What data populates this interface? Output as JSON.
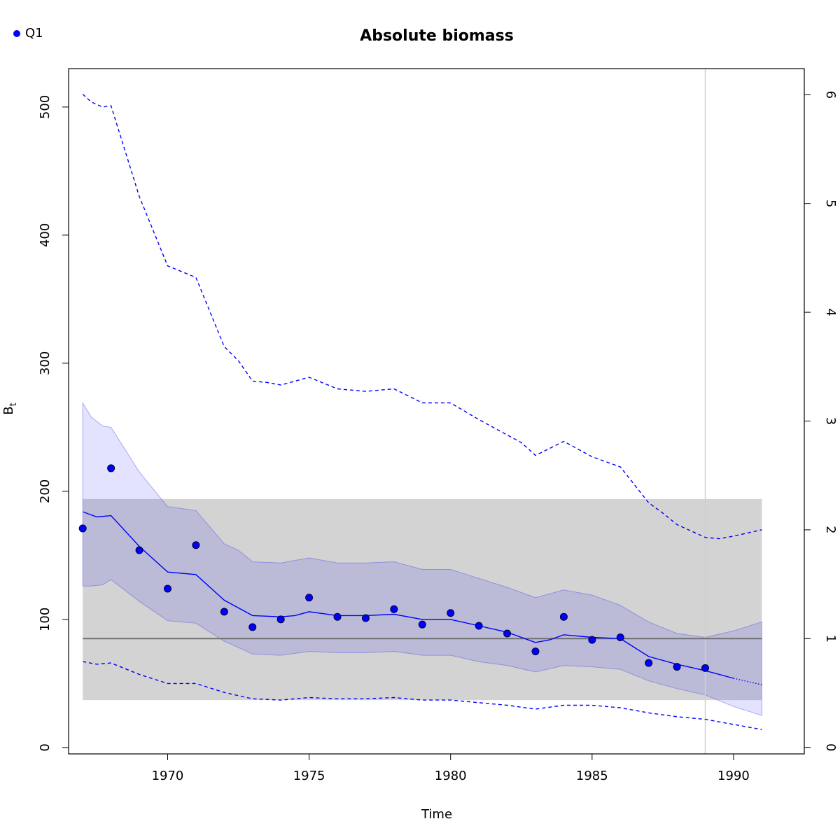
{
  "chart_data": {
    "type": "line",
    "title": "Absolute biomass",
    "xlabel": "Time",
    "ylabel_main": "B",
    "ylabel_sub": "t",
    "xlim": [
      1966.5,
      1992.5
    ],
    "ylim": [
      -5,
      530
    ],
    "y2lim": [
      -0.06,
      6.24
    ],
    "x_ticks": [
      1970,
      1975,
      1980,
      1985,
      1990
    ],
    "x_tick_labels": [
      "1970",
      "1975",
      "1980",
      "1985",
      "1990"
    ],
    "y_ticks": [
      0,
      100,
      200,
      300,
      400,
      500
    ],
    "y_tick_labels": [
      "0",
      "100",
      "200",
      "300",
      "400",
      "500"
    ],
    "y2_ticks": [
      0,
      1,
      2,
      3,
      4,
      5,
      6
    ],
    "y2_tick_labels": [
      "0",
      "1",
      "2",
      "3",
      "4",
      "5",
      "6"
    ],
    "legend": {
      "placement": "top-left",
      "label": "Q1",
      "color": "#0000ff"
    },
    "colors": {
      "series": "#0000ff",
      "ci_band": "#c8c8f5",
      "ref_band": "#d3d3d3",
      "ref_line": "#707070",
      "vline": "#d0d0d0"
    },
    "reference_band": {
      "x": [
        1967,
        1991
      ],
      "y": [
        37,
        194
      ]
    },
    "reference_line": {
      "x": [
        1967,
        1991
      ],
      "y": 85
    },
    "vertical_line": {
      "x": 1989
    },
    "observations": {
      "name": "Q1",
      "x": [
        1967,
        1968,
        1969,
        1970,
        1971,
        1972,
        1973,
        1974,
        1975,
        1976,
        1977,
        1978,
        1979,
        1980,
        1981,
        1982,
        1983,
        1984,
        1985,
        1986,
        1987,
        1988,
        1989
      ],
      "y": [
        171,
        218,
        154,
        124,
        158,
        106,
        94,
        100,
        117,
        102,
        101,
        108,
        96,
        105,
        95,
        89,
        75,
        102,
        84,
        86,
        66,
        63,
        62
      ]
    },
    "estimate": {
      "x": [
        1967,
        1967.5,
        1968,
        1969,
        1970,
        1971,
        1972,
        1973,
        1974,
        1974.5,
        1975,
        1976,
        1977,
        1978,
        1979,
        1980,
        1981,
        1982,
        1983,
        1983.5,
        1984,
        1985,
        1986,
        1987,
        1988,
        1989,
        1990
      ],
      "y": [
        184,
        180,
        181,
        157,
        137,
        135,
        115,
        103,
        102,
        103,
        106,
        103,
        103,
        104,
        100,
        100,
        95,
        90,
        82,
        84,
        88,
        86,
        85,
        71,
        65,
        60,
        54
      ]
    },
    "forecast": {
      "x": [
        1990,
        1991
      ],
      "y": [
        54,
        49
      ]
    },
    "ci_band": {
      "x": [
        1967,
        1967.3,
        1967.7,
        1968,
        1969,
        1970,
        1971,
        1972,
        1972.5,
        1973,
        1974,
        1975,
        1976,
        1977,
        1978,
        1979,
        1980,
        1981,
        1982,
        1983,
        1984,
        1985,
        1986,
        1987,
        1988,
        1989,
        1990,
        1991
      ],
      "upper": [
        269,
        258,
        251,
        250,
        215,
        188,
        185,
        159,
        154,
        145,
        144,
        148,
        144,
        144,
        145,
        139,
        139,
        132,
        125,
        117,
        123,
        119,
        111,
        98,
        89,
        86,
        91,
        98
      ],
      "lower": [
        126,
        126,
        127,
        131,
        114,
        99,
        97,
        83,
        78,
        73,
        72,
        75,
        74,
        74,
        75,
        72,
        72,
        67,
        64,
        59,
        64,
        63,
        61,
        52,
        46,
        41,
        32,
        25
      ]
    },
    "upper_dashed": {
      "x": [
        1967,
        1967.3,
        1967.7,
        1968,
        1969,
        1970,
        1971,
        1972,
        1972.5,
        1973,
        1973.5,
        1974,
        1975,
        1976,
        1977,
        1978,
        1979,
        1980,
        1981,
        1982,
        1982.5,
        1983,
        1984,
        1985,
        1986,
        1987,
        1987.5,
        1988,
        1989,
        1989.5,
        1990,
        1991
      ],
      "y": [
        510,
        504,
        500,
        501,
        430,
        376,
        367,
        313,
        302,
        286,
        285,
        283,
        289,
        280,
        278,
        280,
        269,
        269,
        256,
        244,
        238,
        228,
        239,
        227,
        219,
        191,
        183,
        174,
        164,
        163,
        165,
        170
      ]
    },
    "lower_dashed": {
      "x": [
        1967,
        1967.5,
        1968,
        1969,
        1970,
        1971,
        1972,
        1973,
        1974,
        1975,
        1976,
        1977,
        1978,
        1979,
        1980,
        1981,
        1982,
        1983,
        1984,
        1985,
        1986,
        1987,
        1988,
        1989,
        1990,
        1991
      ],
      "y": [
        67,
        65,
        66,
        57,
        50,
        50,
        43,
        38,
        37,
        39,
        38,
        38,
        39,
        37,
        37,
        35,
        33,
        30,
        33,
        33,
        31,
        27,
        24,
        22,
        18,
        14
      ]
    }
  }
}
